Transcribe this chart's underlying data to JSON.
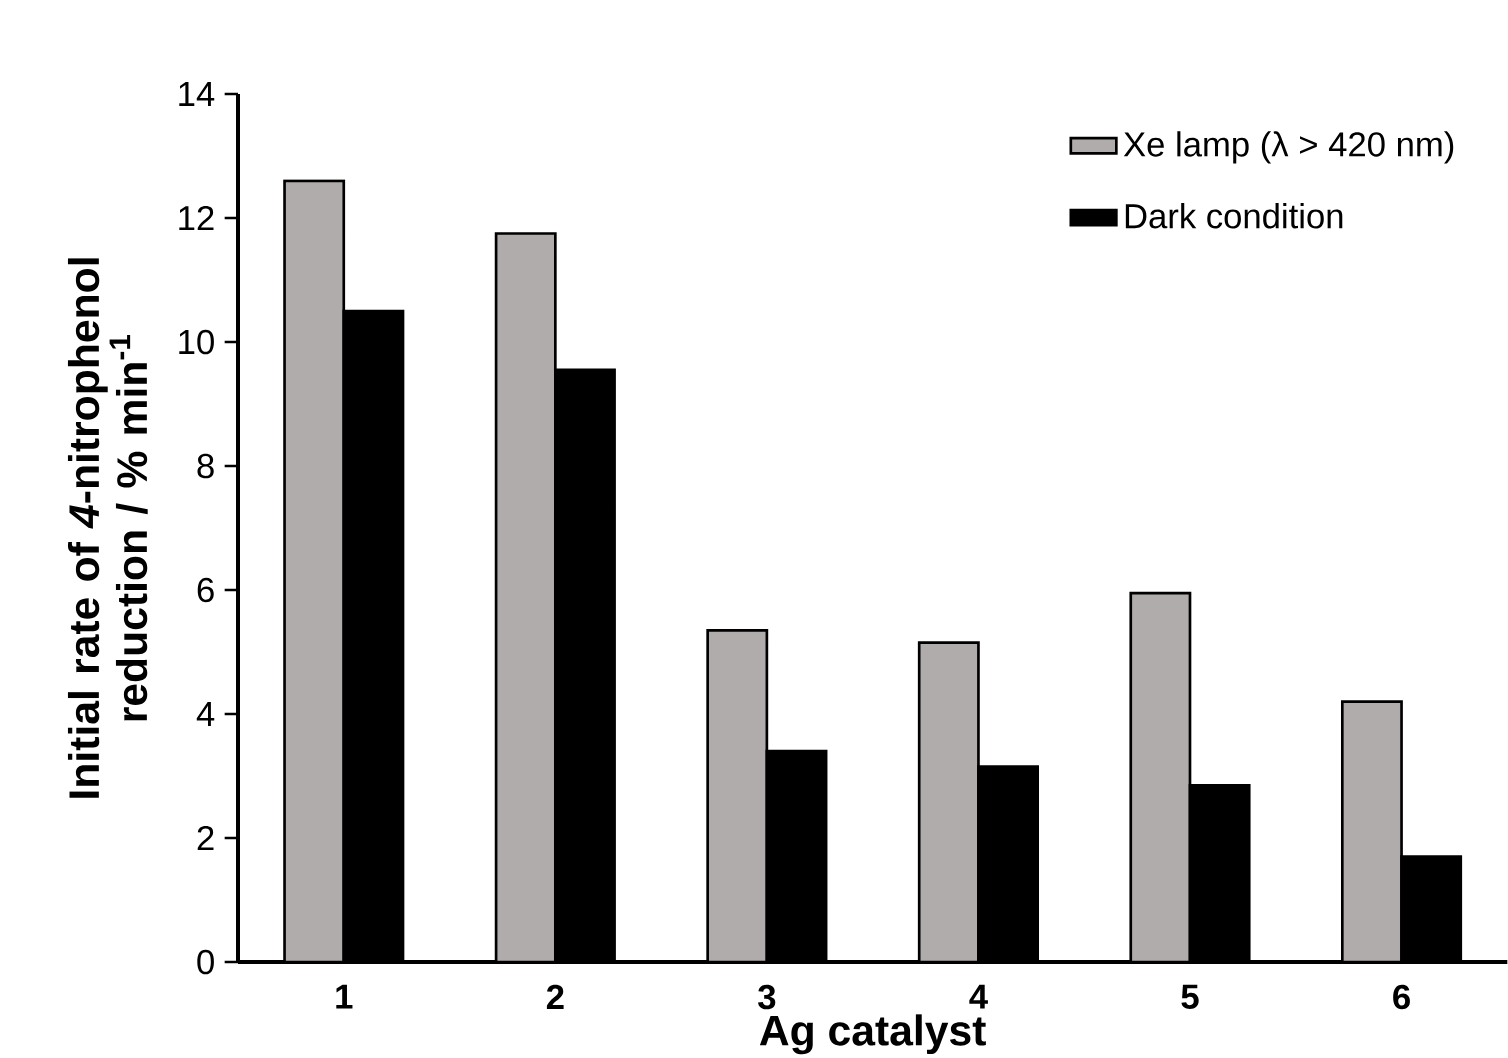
{
  "chart_data": {
    "type": "bar",
    "xlabel": "Ag catalyst",
    "ylabel": "Initial rate of *4*-nitrophenol reduction / % min$^{-1}$",
    "categories": [
      "1",
      "2",
      "3",
      "4",
      "5",
      "6"
    ],
    "series": [
      {
        "name": "Xe lamp (λ > 420 nm)",
        "color": "#b0acab",
        "values": [
          12.6,
          11.75,
          5.35,
          5.15,
          5.95,
          4.2
        ]
      },
      {
        "name": "Dark condition",
        "color": "#000000",
        "values": [
          10.5,
          9.55,
          3.4,
          3.15,
          2.85,
          1.7
        ]
      }
    ],
    "ylim": [
      0,
      14
    ],
    "yticks": [
      0,
      2,
      4,
      6,
      8,
      10,
      12,
      14
    ],
    "grid": false,
    "legend": "top right"
  }
}
